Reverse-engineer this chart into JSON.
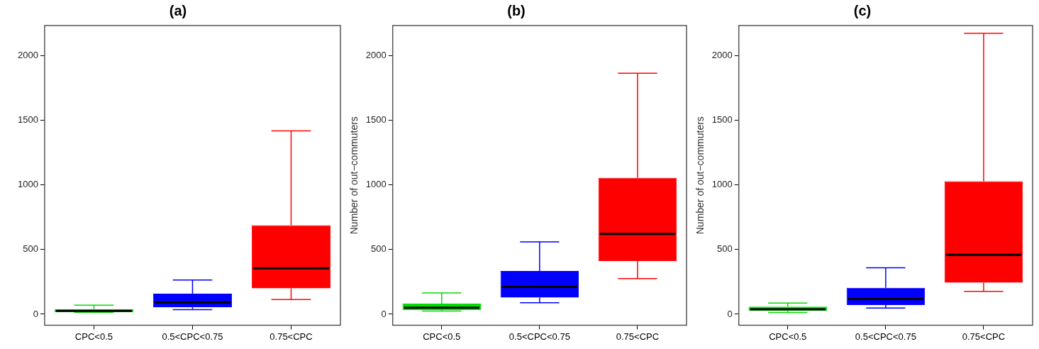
{
  "chart_data": [
    {
      "type": "box",
      "title": "(a)",
      "categories": [
        "CPC<0.5",
        "0.5<CPC<0.75",
        "0.75<CPC"
      ],
      "colors": [
        "#00dd00",
        "#0000ff",
        "#ff0000"
      ],
      "boxes": [
        {
          "low": 15,
          "q1": 15,
          "median": 25,
          "q3": 40,
          "high": 70
        },
        {
          "low": 35,
          "q1": 53,
          "median": 91,
          "q3": 159,
          "high": 264
        },
        {
          "low": 113,
          "q1": 200,
          "median": 355,
          "q3": 689,
          "high": 1420
        }
      ],
      "ylim": [
        -85,
        2235
      ],
      "yticks": [
        0,
        500,
        1000,
        1500,
        2000
      ],
      "grid": false,
      "legend": false
    },
    {
      "type": "box",
      "title": "(b)",
      "ylabel": "Number of out−commuters",
      "categories": [
        "CPC<0.5",
        "0.5<CPC<0.75",
        "0.75<CPC"
      ],
      "colors": [
        "#00dd00",
        "#0000ff",
        "#ff0000"
      ],
      "boxes": [
        {
          "low": 24,
          "q1": 33,
          "median": 51,
          "q3": 82,
          "high": 164
        },
        {
          "low": 89,
          "q1": 129,
          "median": 211,
          "q3": 334,
          "high": 560
        },
        {
          "low": 275,
          "q1": 412,
          "median": 622,
          "q3": 1056,
          "high": 1865
        }
      ],
      "ylim": [
        -85,
        2235
      ],
      "yticks": [
        0,
        500,
        1000,
        1500,
        2000
      ],
      "grid": false,
      "legend": false
    },
    {
      "type": "box",
      "title": "(c)",
      "ylabel": "Number of out−commuters",
      "categories": [
        "CPC<0.5",
        "0.5<CPC<0.75",
        "0.75<CPC"
      ],
      "colors": [
        "#00dd00",
        "#0000ff",
        "#ff0000"
      ],
      "boxes": [
        {
          "low": 13,
          "q1": 26,
          "median": 38,
          "q3": 58,
          "high": 86
        },
        {
          "low": 47,
          "q1": 71,
          "median": 117,
          "q3": 204,
          "high": 359
        },
        {
          "low": 177,
          "q1": 244,
          "median": 459,
          "q3": 1030,
          "high": 2175
        }
      ],
      "ylim": [
        -85,
        2235
      ],
      "yticks": [
        0,
        500,
        1000,
        1500,
        2000
      ],
      "grid": false,
      "legend": false
    }
  ]
}
